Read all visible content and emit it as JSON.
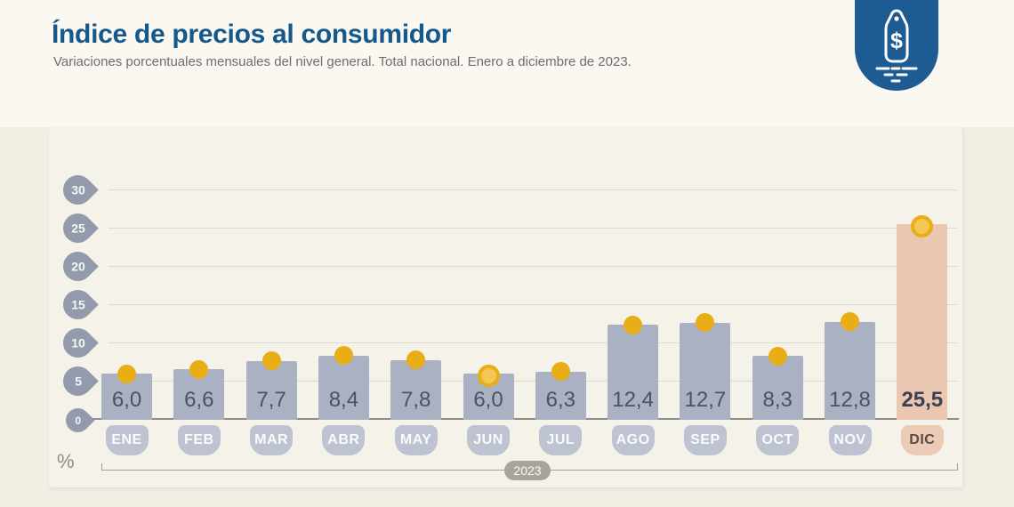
{
  "header": {
    "title": "Índice de precios al consumidor",
    "subtitle": "Variaciones porcentuales mensuales del nivel general. Total nacional. Enero a diciembre de 2023.",
    "accent_color": "#14588c"
  },
  "brand": {
    "icon": "price-tag-icon",
    "symbol": "$",
    "background": "#1d5b92"
  },
  "chart_data": {
    "type": "bar",
    "title": "Índice de precios al consumidor",
    "subtitle": "Variaciones porcentuales mensuales del nivel general. Total nacional. Enero a diciembre de 2023.",
    "categories": [
      "ENE",
      "FEB",
      "MAR",
      "ABR",
      "MAY",
      "JUN",
      "JUL",
      "AGO",
      "SEP",
      "OCT",
      "NOV",
      "DIC"
    ],
    "values": [
      6.0,
      6.6,
      7.7,
      8.4,
      7.8,
      6.0,
      6.3,
      12.4,
      12.7,
      8.3,
      12.8,
      25.5
    ],
    "value_labels": [
      "6,0",
      "6,6",
      "7,7",
      "8,4",
      "7,8",
      "6,0",
      "6,3",
      "12,4",
      "12,7",
      "8,3",
      "12,8",
      "25,5"
    ],
    "unit": "%",
    "period_label": "2023",
    "yticks": [
      0,
      5,
      10,
      15,
      20,
      25,
      30
    ],
    "ylim": [
      0,
      30
    ],
    "grid": true,
    "legend_position": "none",
    "highlight_index": 11,
    "ring_marker_indexes": [
      5,
      11
    ],
    "colors": {
      "bar": "#a9b1c3",
      "bar_highlight": "#e9c7b1",
      "month_tab": "#bdc3d1",
      "month_tab_highlight": "#ebcbb6",
      "value_text": "#4a5264",
      "value_text_highlight": "#3a3f54",
      "month_text": "#fafafa",
      "month_text_highlight": "#5d4a41",
      "marker": "#e9ad15",
      "marker_ring_fill": "#f4c654",
      "ytick_badge": "#939aac",
      "gridline": "#dcd9d0",
      "axis": "#8f8d88",
      "year_badge": "#a7a49c"
    }
  }
}
